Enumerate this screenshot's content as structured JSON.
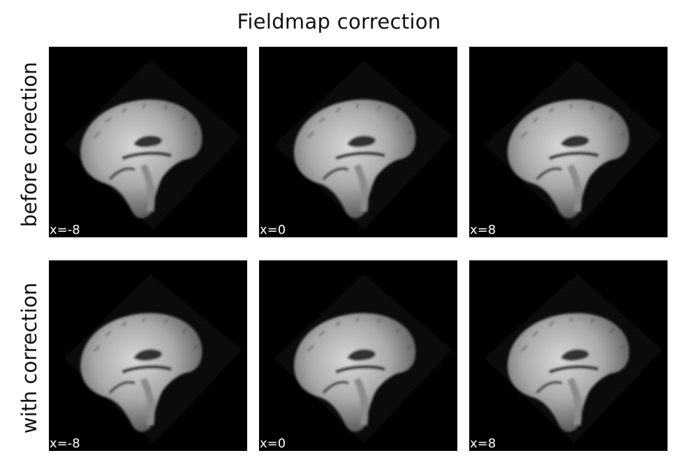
{
  "figure": {
    "title": "Fieldmap correction",
    "rows": [
      {
        "label": "before corection",
        "panels": [
          {
            "coord": "x=-8"
          },
          {
            "coord": "x=0"
          },
          {
            "coord": "x=8"
          }
        ]
      },
      {
        "label": "with correction",
        "panels": [
          {
            "coord": "x=-8"
          },
          {
            "coord": "x=0"
          },
          {
            "coord": "x=8"
          }
        ]
      }
    ]
  },
  "colors": {
    "background": "#ffffff",
    "panel": "#000000",
    "tissue_light": "#cfcfcf",
    "tissue_dark": "#6a6a6a"
  }
}
